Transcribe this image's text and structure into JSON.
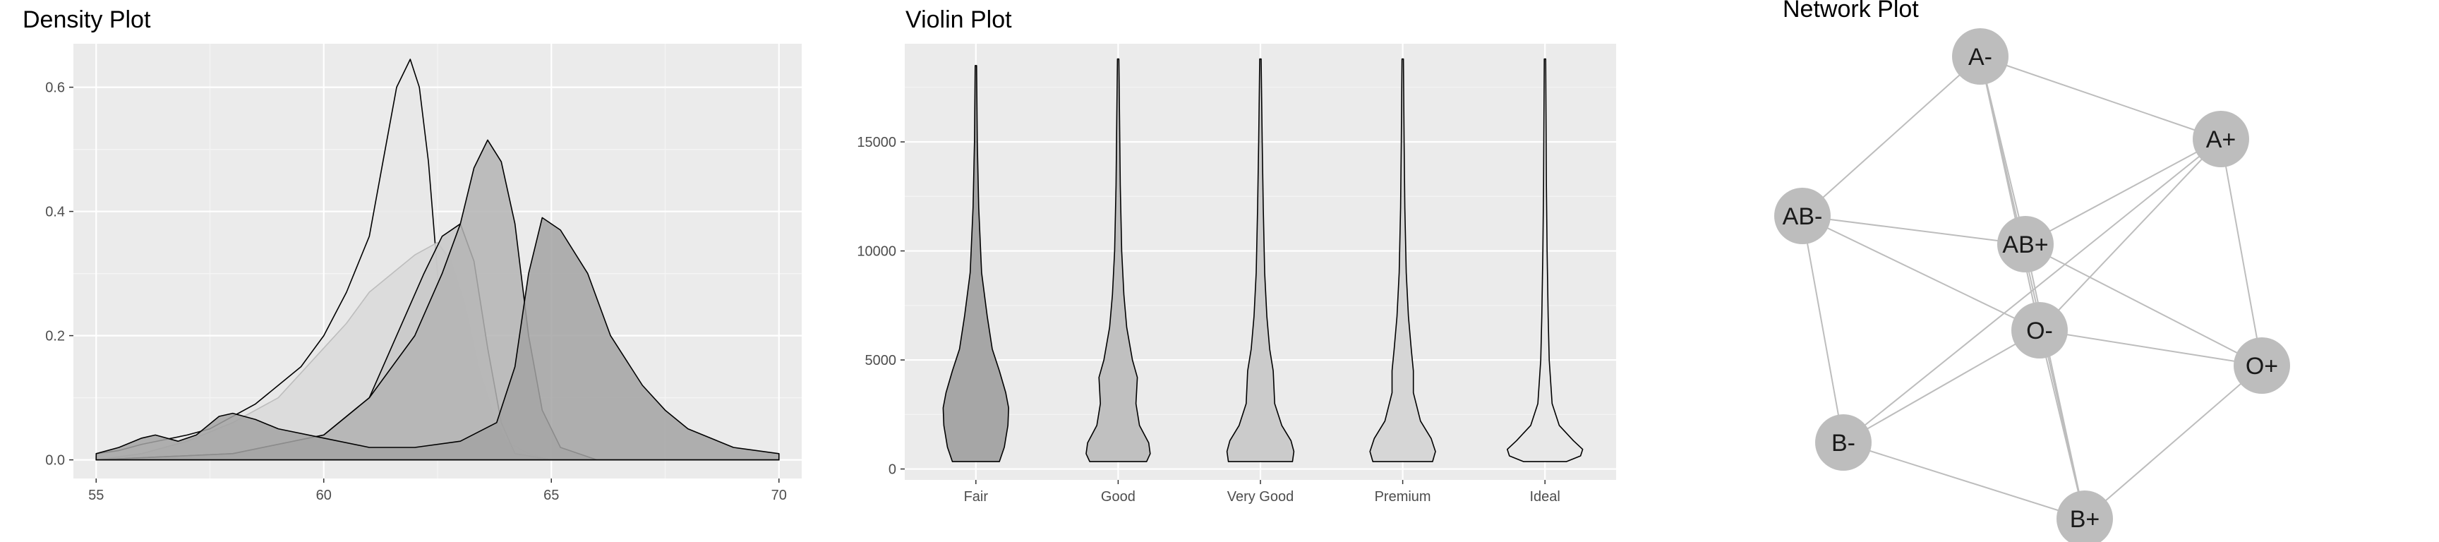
{
  "chart_data": [
    {
      "type": "area",
      "title": "Density Plot",
      "xlim": [
        54.5,
        70.5
      ],
      "ylim": [
        -0.03,
        0.67
      ],
      "x_ticks": [
        55,
        60,
        65,
        70
      ],
      "y_ticks": [
        0.0,
        0.2,
        0.4,
        0.6
      ],
      "grid": true,
      "series": [
        {
          "fill": "#e8e8e8",
          "stroke": "#000000",
          "points": [
            [
              55,
              0.01
            ],
            [
              55.5,
              0.015
            ],
            [
              56,
              0.025
            ],
            [
              57,
              0.04
            ],
            [
              57.5,
              0.05
            ],
            [
              58,
              0.07
            ],
            [
              58.5,
              0.09
            ],
            [
              59,
              0.12
            ],
            [
              59.5,
              0.15
            ],
            [
              60,
              0.2
            ],
            [
              60.5,
              0.27
            ],
            [
              61,
              0.36
            ],
            [
              61.3,
              0.48
            ],
            [
              61.6,
              0.6
            ],
            [
              61.9,
              0.645
            ],
            [
              62.1,
              0.6
            ],
            [
              62.3,
              0.48
            ],
            [
              62.5,
              0.3
            ],
            [
              62.7,
              0.15
            ],
            [
              62.9,
              0.05
            ],
            [
              63.2,
              0.01
            ],
            [
              63.5,
              0.0
            ],
            [
              70,
              0.0
            ]
          ]
        },
        {
          "fill": "#d9d9d9",
          "stroke": "#bdbdbd",
          "points": [
            [
              55,
              0.0
            ],
            [
              56,
              0.01
            ],
            [
              57,
              0.03
            ],
            [
              58,
              0.06
            ],
            [
              59,
              0.1
            ],
            [
              60,
              0.18
            ],
            [
              60.5,
              0.22
            ],
            [
              61,
              0.27
            ],
            [
              61.5,
              0.3
            ],
            [
              62,
              0.33
            ],
            [
              62.5,
              0.35
            ],
            [
              62.8,
              0.32
            ],
            [
              63.1,
              0.25
            ],
            [
              63.4,
              0.15
            ],
            [
              63.7,
              0.08
            ],
            [
              64,
              0.03
            ],
            [
              64.5,
              0.01
            ],
            [
              65,
              0.0
            ],
            [
              70,
              0.0
            ]
          ]
        },
        {
          "fill": "#c8c8c8",
          "stroke": "#000000",
          "points": [
            [
              55,
              0.0
            ],
            [
              58,
              0.01
            ],
            [
              60,
              0.04
            ],
            [
              61,
              0.1
            ],
            [
              61.6,
              0.2
            ],
            [
              62.2,
              0.3
            ],
            [
              62.6,
              0.36
            ],
            [
              63,
              0.38
            ],
            [
              63.3,
              0.32
            ],
            [
              63.6,
              0.18
            ],
            [
              63.9,
              0.06
            ],
            [
              64.2,
              0.01
            ],
            [
              65,
              0.0
            ],
            [
              70,
              0.0
            ]
          ]
        },
        {
          "fill": "#b4b4b4",
          "stroke": "#000000",
          "points": [
            [
              55,
              0.0
            ],
            [
              58,
              0.01
            ],
            [
              60,
              0.04
            ],
            [
              61,
              0.1
            ],
            [
              62,
              0.2
            ],
            [
              62.6,
              0.3
            ],
            [
              63,
              0.38
            ],
            [
              63.3,
              0.47
            ],
            [
              63.6,
              0.515
            ],
            [
              63.9,
              0.48
            ],
            [
              64.2,
              0.38
            ],
            [
              64.5,
              0.2
            ],
            [
              64.8,
              0.08
            ],
            [
              65.2,
              0.02
            ],
            [
              66,
              0.0
            ],
            [
              70,
              0.0
            ]
          ]
        },
        {
          "fill": "#a3a3a3",
          "stroke": "#000000",
          "points": [
            [
              55,
              0.01
            ],
            [
              55.5,
              0.02
            ],
            [
              56,
              0.035
            ],
            [
              56.3,
              0.04
            ],
            [
              56.8,
              0.03
            ],
            [
              57.2,
              0.04
            ],
            [
              57.7,
              0.07
            ],
            [
              58,
              0.075
            ],
            [
              58.5,
              0.065
            ],
            [
              59,
              0.05
            ],
            [
              60,
              0.035
            ],
            [
              61,
              0.02
            ],
            [
              62,
              0.02
            ],
            [
              63,
              0.03
            ],
            [
              63.8,
              0.06
            ],
            [
              64.2,
              0.15
            ],
            [
              64.5,
              0.3
            ],
            [
              64.8,
              0.39
            ],
            [
              65.2,
              0.37
            ],
            [
              65.8,
              0.3
            ],
            [
              66.3,
              0.2
            ],
            [
              67,
              0.12
            ],
            [
              67.5,
              0.08
            ],
            [
              68,
              0.05
            ],
            [
              69,
              0.02
            ],
            [
              70,
              0.01
            ]
          ]
        }
      ]
    },
    {
      "type": "violin",
      "title": "Violin Plot",
      "categories": [
        "Fair",
        "Good",
        "Very Good",
        "Premium",
        "Ideal"
      ],
      "ylim": [
        -500,
        19500
      ],
      "y_ticks": [
        0,
        5000,
        10000,
        15000
      ],
      "y_range": [
        337,
        18823
      ],
      "fills": [
        "#a6a6a6",
        "#c0c0c0",
        "#cbcbcb",
        "#d6d6d6",
        "#e8e8e8"
      ],
      "half_widths": [
        [
          [
            337,
            0.33
          ],
          [
            1000,
            0.4
          ],
          [
            2000,
            0.45
          ],
          [
            2800,
            0.46
          ],
          [
            3500,
            0.42
          ],
          [
            4500,
            0.33
          ],
          [
            5500,
            0.23
          ],
          [
            7000,
            0.16
          ],
          [
            9000,
            0.08
          ],
          [
            12000,
            0.04
          ],
          [
            15000,
            0.02
          ],
          [
            18500,
            0.01
          ]
        ],
        [
          [
            337,
            0.4
          ],
          [
            700,
            0.45
          ],
          [
            1200,
            0.43
          ],
          [
            2000,
            0.3
          ],
          [
            3000,
            0.25
          ],
          [
            4200,
            0.27
          ],
          [
            5000,
            0.2
          ],
          [
            6500,
            0.12
          ],
          [
            8000,
            0.08
          ],
          [
            10000,
            0.05
          ],
          [
            13000,
            0.03
          ],
          [
            16000,
            0.02
          ],
          [
            18800,
            0.01
          ]
        ],
        [
          [
            337,
            0.45
          ],
          [
            800,
            0.47
          ],
          [
            1300,
            0.43
          ],
          [
            2000,
            0.3
          ],
          [
            3000,
            0.2
          ],
          [
            4500,
            0.18
          ],
          [
            5500,
            0.13
          ],
          [
            7000,
            0.09
          ],
          [
            9000,
            0.06
          ],
          [
            12000,
            0.04
          ],
          [
            15000,
            0.025
          ],
          [
            18800,
            0.01
          ]
        ],
        [
          [
            337,
            0.42
          ],
          [
            800,
            0.46
          ],
          [
            1400,
            0.4
          ],
          [
            2200,
            0.25
          ],
          [
            3500,
            0.15
          ],
          [
            4500,
            0.15
          ],
          [
            5500,
            0.12
          ],
          [
            7000,
            0.08
          ],
          [
            9000,
            0.05
          ],
          [
            12000,
            0.03
          ],
          [
            15000,
            0.02
          ],
          [
            18800,
            0.01
          ]
        ],
        [
          [
            337,
            0.3
          ],
          [
            600,
            0.5
          ],
          [
            900,
            0.53
          ],
          [
            1300,
            0.4
          ],
          [
            2000,
            0.2
          ],
          [
            3000,
            0.1
          ],
          [
            5000,
            0.06
          ],
          [
            7000,
            0.045
          ],
          [
            10000,
            0.03
          ],
          [
            13000,
            0.02
          ],
          [
            16000,
            0.015
          ],
          [
            18800,
            0.01
          ]
        ]
      ]
    },
    {
      "type": "network",
      "title": "Network Plot",
      "nodes": [
        {
          "id": "A-",
          "label": "A-"
        },
        {
          "id": "A+",
          "label": "A+"
        },
        {
          "id": "AB-",
          "label": "AB-"
        },
        {
          "id": "AB+",
          "label": "AB+"
        },
        {
          "id": "O-",
          "label": "O-"
        },
        {
          "id": "O+",
          "label": "O+"
        },
        {
          "id": "B-",
          "label": "B-"
        },
        {
          "id": "B+",
          "label": "B+"
        }
      ],
      "edges": [
        [
          "A-",
          "A+"
        ],
        [
          "A-",
          "AB-"
        ],
        [
          "A-",
          "AB+"
        ],
        [
          "A-",
          "B+"
        ],
        [
          "A-",
          "O-"
        ],
        [
          "A+",
          "AB+"
        ],
        [
          "A+",
          "O-"
        ],
        [
          "A+",
          "O+"
        ],
        [
          "A+",
          "B-"
        ],
        [
          "AB-",
          "AB+"
        ],
        [
          "AB-",
          "O-"
        ],
        [
          "AB-",
          "B-"
        ],
        [
          "AB+",
          "O+"
        ],
        [
          "AB+",
          "B+"
        ],
        [
          "O-",
          "B-"
        ],
        [
          "O-",
          "O+"
        ],
        [
          "O-",
          "B+"
        ],
        [
          "O+",
          "B+"
        ],
        [
          "B-",
          "B+"
        ]
      ],
      "node_color": "#bdbdbd",
      "edge_color": "#bdbdbd"
    }
  ]
}
